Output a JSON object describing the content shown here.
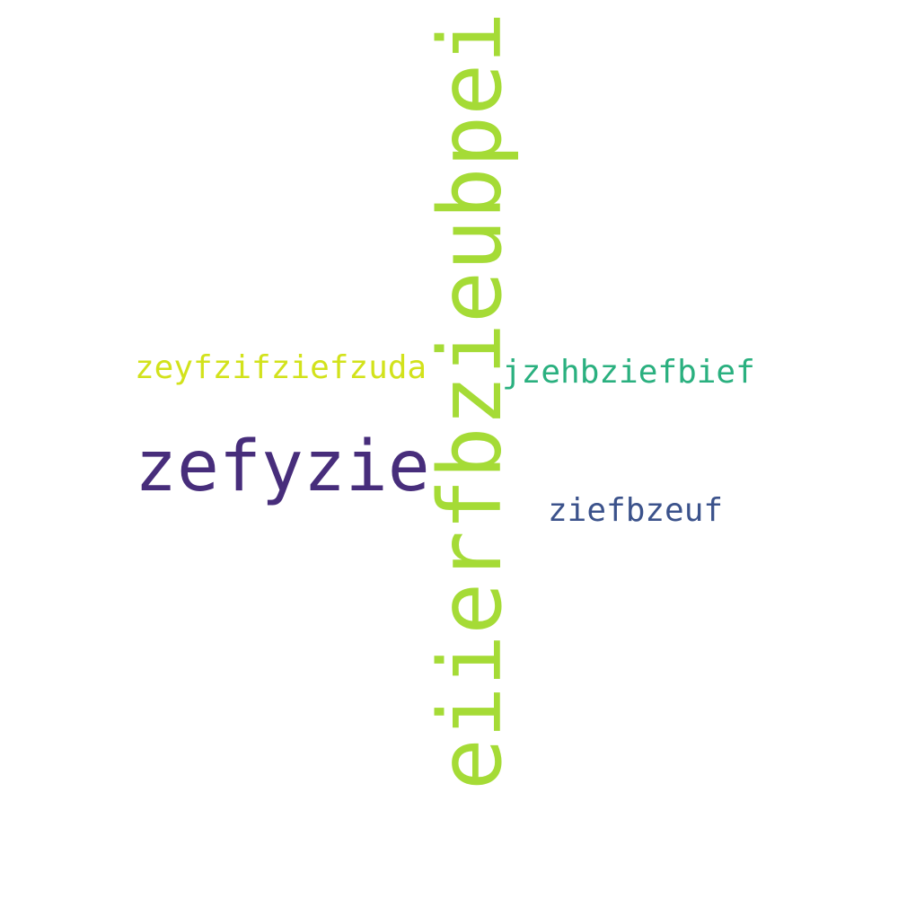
{
  "words": [
    {
      "text": "eiierfbzieubpei",
      "color": "#a5db36"
    },
    {
      "text": "zefyzie",
      "color": "#472d7b"
    },
    {
      "text": "zeyfzifziefzuda",
      "color": "#d2e21b"
    },
    {
      "text": "jzehbziefbief",
      "color": "#2ab07f"
    },
    {
      "text": "ziefbzeuf",
      "color": "#3b528b"
    }
  ]
}
